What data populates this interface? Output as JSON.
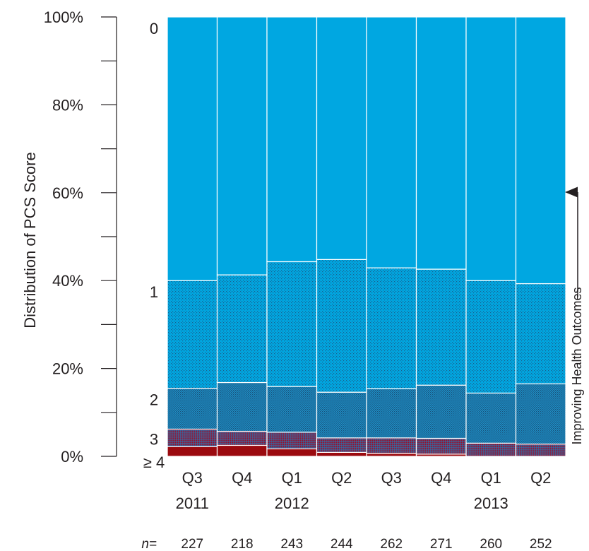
{
  "chart_data": {
    "type": "bar",
    "stacked": true,
    "normalized": true,
    "ylabel": "Distribution of PCS Score",
    "ylim": [
      0,
      100
    ],
    "y_ticks": [
      "0%",
      "20%",
      "40%",
      "60%",
      "80%",
      "100%"
    ],
    "y_tick_values": [
      0,
      20,
      40,
      60,
      80,
      100
    ],
    "categories": [
      "Q3",
      "Q4",
      "Q1",
      "Q2",
      "Q3",
      "Q4",
      "Q1",
      "Q2"
    ],
    "year_labels": [
      "2011",
      "",
      "2012",
      "",
      "",
      "",
      "2013",
      ""
    ],
    "n_label": "n=",
    "n_values": [
      "227",
      "218",
      "243",
      "244",
      "262",
      "271",
      "260",
      "252"
    ],
    "series": [
      {
        "name": "≥ 4",
        "color": "#9b0a0f",
        "pattern": "solid",
        "values": [
          2.2,
          2.5,
          1.7,
          0.9,
          0.7,
          0.5,
          0.0,
          0.0
        ]
      },
      {
        "name": "3",
        "color": "#9b0a0f",
        "pattern": "crosshatch",
        "values": [
          4.0,
          3.2,
          3.8,
          3.3,
          3.5,
          3.6,
          3.0,
          2.8
        ]
      },
      {
        "name": "2",
        "color": "#00a7e1",
        "pattern": "dense",
        "values": [
          9.3,
          11.1,
          10.4,
          10.4,
          11.2,
          12.1,
          11.4,
          13.7
        ]
      },
      {
        "name": "1",
        "color": "#00a7e1",
        "pattern": "dots",
        "values": [
          24.5,
          24.5,
          28.4,
          30.2,
          27.5,
          26.4,
          25.6,
          22.8
        ]
      },
      {
        "name": "0",
        "color": "#00a7e1",
        "pattern": "solid",
        "values": [
          60.0,
          58.7,
          55.7,
          55.2,
          57.1,
          57.4,
          60.0,
          60.7
        ]
      }
    ],
    "side_note": "Improving Health Outcomes",
    "grid": false,
    "legend": "inline-left"
  }
}
